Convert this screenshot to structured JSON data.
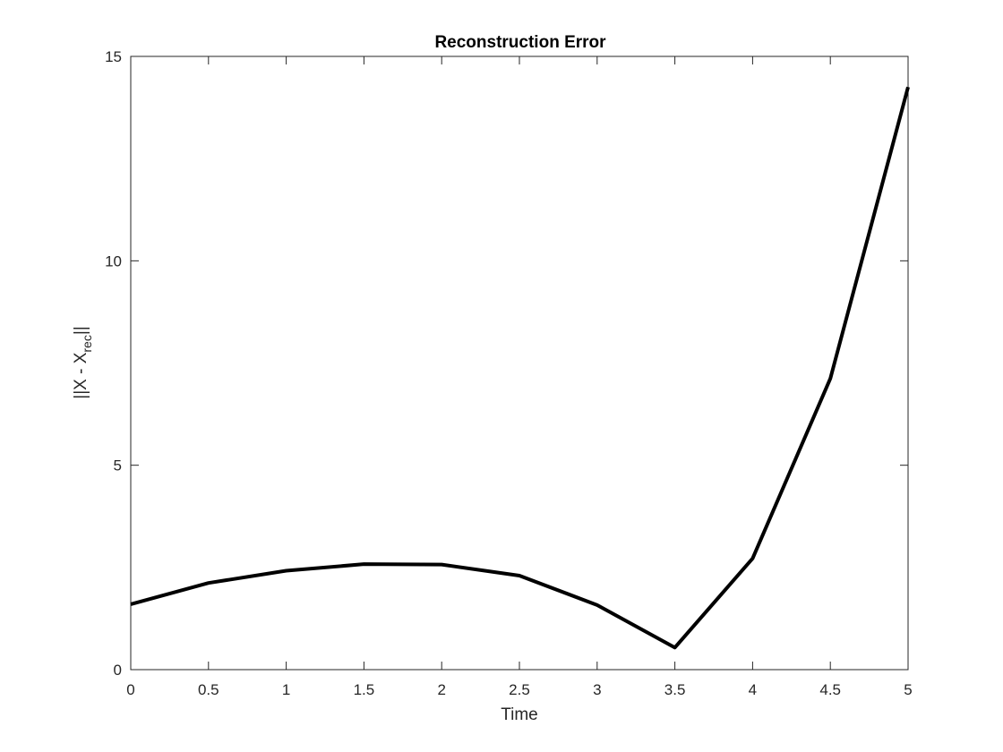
{
  "chart_data": {
    "type": "line",
    "title": "Reconstruction Error",
    "xlabel": "Time",
    "ylabel": {
      "main": "||X - X",
      "subscript": "rec",
      "suffix": "||"
    },
    "xlim": [
      0,
      5
    ],
    "ylim": [
      0,
      15
    ],
    "xticks": [
      0,
      0.5,
      1,
      1.5,
      2,
      2.5,
      3,
      3.5,
      4,
      4.5,
      5
    ],
    "yticks": [
      0,
      5,
      10,
      15
    ],
    "grid": false,
    "series": [
      {
        "color": "#000000",
        "x": [
          0,
          0.5,
          1,
          1.5,
          2,
          2.5,
          3,
          3.5,
          4,
          4.5,
          5
        ],
        "y": [
          1.6,
          2.12,
          2.42,
          2.58,
          2.57,
          2.3,
          1.58,
          0.54,
          2.72,
          7.12,
          14.25
        ]
      }
    ]
  }
}
